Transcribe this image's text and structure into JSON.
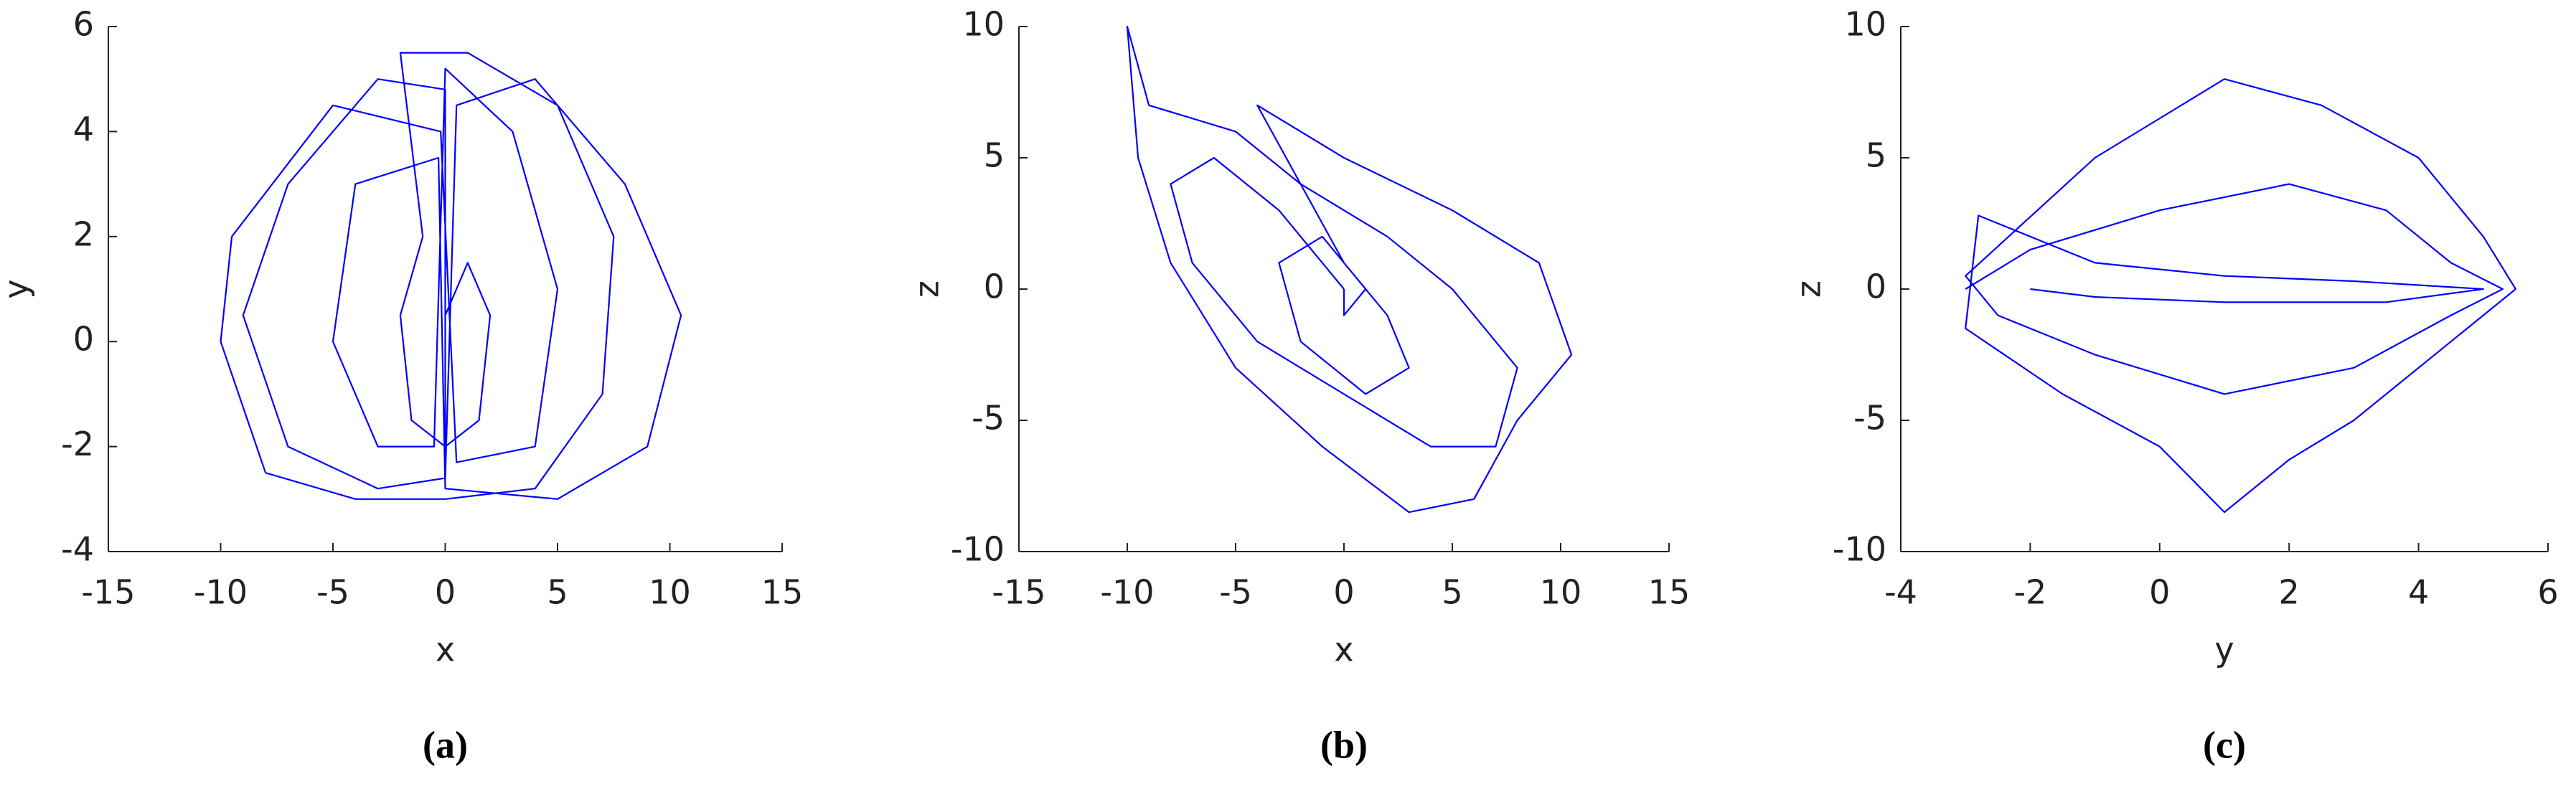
{
  "chart_data": [
    {
      "type": "line",
      "caption": "(a)",
      "xlabel": "x",
      "ylabel": "y",
      "color": "#0000ff",
      "xlim": [
        -15,
        15
      ],
      "ylim": [
        -4,
        6
      ],
      "xticks": [
        -15,
        -10,
        -5,
        0,
        5,
        10,
        15
      ],
      "yticks": [
        -4,
        -2,
        0,
        2,
        4,
        6
      ],
      "x": [
        0,
        0,
        -3,
        -7,
        -9,
        -7,
        -3,
        0,
        0.5,
        4,
        8,
        10.5,
        9,
        5,
        0,
        -0.3,
        -4,
        -5,
        -3,
        -0.5,
        0,
        3,
        5,
        4,
        0.5,
        -0.2,
        -5,
        -9.5,
        -10,
        -8,
        -4,
        0,
        4,
        7,
        7.5,
        5,
        1,
        -2,
        -1,
        -2,
        -1.5,
        0,
        1.5,
        2,
        1,
        0,
        0
      ],
      "values": [
        -2.5,
        4.8,
        5,
        3,
        0.5,
        -2,
        -2.8,
        -2.6,
        4.5,
        5,
        3,
        0.5,
        -2,
        -3,
        -2.8,
        3.5,
        3,
        0,
        -2,
        -2,
        5.2,
        4,
        1,
        -2,
        -2.3,
        4,
        4.5,
        2,
        0,
        -2.5,
        -3,
        -3,
        -2.8,
        -1,
        2,
        4.5,
        5.5,
        5.5,
        2,
        0.5,
        -1.5,
        -2,
        -1.5,
        0.5,
        1.5,
        0.5,
        -2.4
      ]
    },
    {
      "type": "line",
      "caption": "(b)",
      "xlabel": "x",
      "ylabel": "z",
      "color": "#0000ff",
      "xlim": [
        -15,
        15
      ],
      "ylim": [
        -10,
        10
      ],
      "xticks": [
        -15,
        -10,
        -5,
        0,
        5,
        10,
        15
      ],
      "yticks": [
        -10,
        -5,
        0,
        5,
        10
      ],
      "x": [
        0,
        -3,
        -6,
        -8,
        -7,
        -4,
        0,
        4,
        7,
        8,
        5,
        2,
        -2,
        -5,
        -9,
        -10,
        -9.5,
        -8,
        -5,
        -1,
        3,
        6,
        8,
        10.5,
        9,
        5,
        0,
        -4,
        -2,
        0,
        2,
        3,
        1,
        -2,
        -3,
        -1,
        1,
        0,
        0
      ],
      "values": [
        0,
        3,
        5,
        4,
        1,
        -2,
        -4,
        -6,
        -6,
        -3,
        0,
        2,
        4,
        6,
        7,
        10,
        5,
        1,
        -3,
        -6,
        -8.5,
        -8,
        -5,
        -2.5,
        1,
        3,
        5,
        7,
        4,
        1,
        -1,
        -3,
        -4,
        -2,
        1,
        2,
        0,
        -1,
        0
      ]
    },
    {
      "type": "line",
      "caption": "(c)",
      "xlabel": "y",
      "ylabel": "z",
      "color": "#0000ff",
      "xlim": [
        -4,
        6
      ],
      "ylim": [
        -10,
        10
      ],
      "xticks": [
        -4,
        -2,
        0,
        2,
        4,
        6
      ],
      "yticks": [
        -10,
        -5,
        0,
        5,
        10
      ],
      "x": [
        -3,
        -2,
        0,
        2,
        3.5,
        4.5,
        5.3,
        4.5,
        3,
        1,
        -1,
        -2.5,
        -3,
        -1,
        1,
        2.5,
        4,
        5,
        5.5,
        4.5,
        3,
        2,
        1,
        0,
        -1.5,
        -3,
        -2.8,
        -1,
        1,
        3,
        5,
        3.5,
        1,
        -1,
        -2
      ],
      "values": [
        0,
        1.5,
        3,
        4,
        3,
        1,
        0,
        -1,
        -3,
        -4,
        -2.5,
        -1,
        0.5,
        5,
        8,
        7,
        5,
        2,
        0,
        -2,
        -5,
        -6.5,
        -8.5,
        -6,
        -4,
        -1.5,
        2.8,
        1,
        0.5,
        0.3,
        0,
        -0.5,
        -0.5,
        -0.3,
        0
      ]
    }
  ]
}
